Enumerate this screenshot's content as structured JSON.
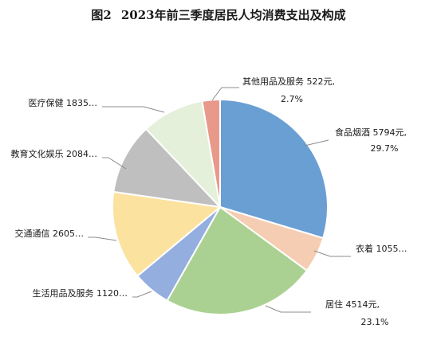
{
  "title": {
    "figure_no": "图2",
    "text": "2023年前三季度居民人均消费支出及构成"
  },
  "chart_data": {
    "type": "pie",
    "title": "2023年前三季度居民人均消费支出及构成",
    "slices": [
      {
        "name": "食品烟酒",
        "value": 5794,
        "percent": 29.7,
        "color": "#6A9FD4",
        "label_lines": [
          "食品烟酒 5794元,",
          "29.7%"
        ]
      },
      {
        "name": "衣着",
        "value": 1055,
        "percent": 5.4,
        "color": "#F4CDB3",
        "label_lines": [
          "衣着 1055…"
        ]
      },
      {
        "name": "居住",
        "value": 4514,
        "percent": 23.1,
        "color": "#ABD192",
        "label_lines": [
          "居住 4514元,",
          "23.1%"
        ]
      },
      {
        "name": "生活用品及服务",
        "value": 1120,
        "percent": 5.7,
        "color": "#93AEDF",
        "label_lines": [
          "生活用品及服务 1120…"
        ]
      },
      {
        "name": "交通通信",
        "value": 2605,
        "percent": 13.4,
        "color": "#FCE29F",
        "label_lines": [
          "交通通信 2605…"
        ]
      },
      {
        "name": "教育文化娱乐",
        "value": 2084,
        "percent": 10.7,
        "color": "#BFBFBF",
        "label_lines": [
          "教育文化娱乐 2084…"
        ]
      },
      {
        "name": "医疗保健",
        "value": 1835,
        "percent": 9.4,
        "color": "#E4F0DA",
        "label_lines": [
          "医疗保健 1835…"
        ]
      },
      {
        "name": "其他用品及服务",
        "value": 522,
        "percent": 2.7,
        "color": "#E9998A",
        "label_lines": [
          "其他用品及服务 522元,",
          "2.7%"
        ]
      }
    ]
  }
}
